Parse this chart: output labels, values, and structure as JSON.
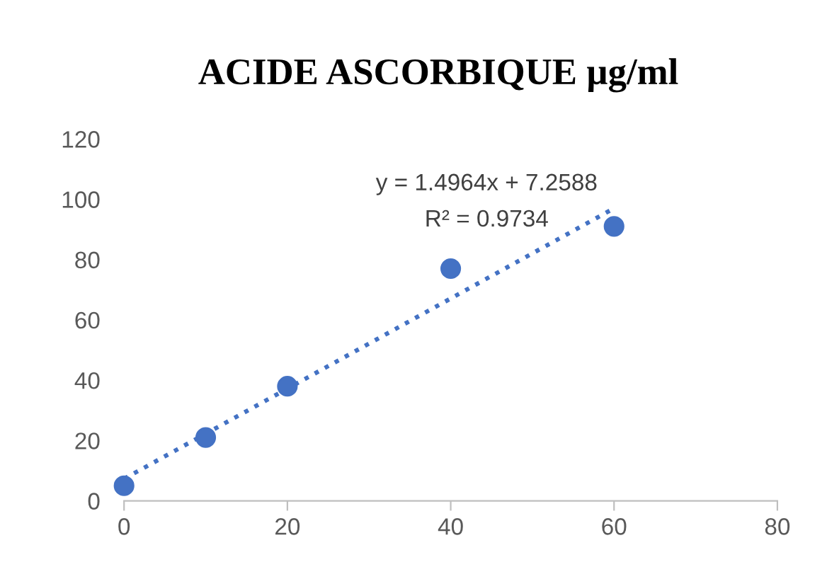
{
  "chart_data": {
    "type": "scatter",
    "title": "ACIDE ASCORBIQUE µg/ml",
    "series": [
      {
        "color": "#4472c4",
        "x": [
          0,
          10,
          20,
          40,
          60
        ],
        "values": [
          5,
          21,
          38,
          77,
          91
        ],
        "marker": "circle"
      },
      {
        "type": "line",
        "color": "#4472c4",
        "x": [
          0,
          60
        ],
        "values": [
          7.3,
          97.0
        ],
        "line_style": "dotted",
        "marker": "none"
      }
    ],
    "annotations": [
      "y = 1.4964x + 7.2588",
      "R² = 0.9734"
    ],
    "xlim": [
      0,
      80
    ],
    "xticks": [
      0,
      20,
      40,
      60,
      80
    ],
    "ylim": [
      0,
      120
    ],
    "yticks": [
      0,
      20,
      40,
      60,
      80,
      100,
      120
    ],
    "grid": false,
    "legend": false
  }
}
